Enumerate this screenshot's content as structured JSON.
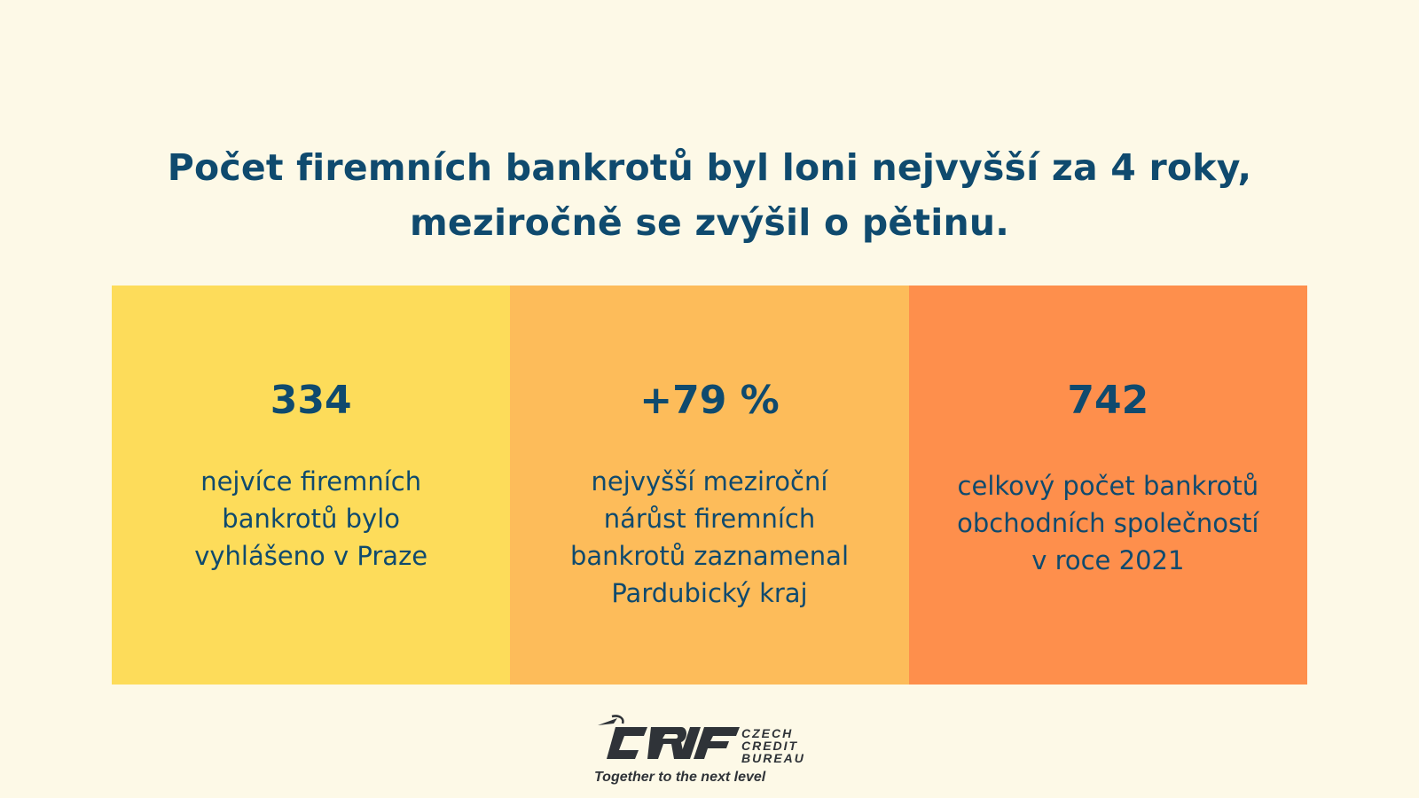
{
  "headline": {
    "line1": "Počet firemních bankrotů byl loni nejvyšší za 4 roky,",
    "line2": "meziročně se zvýšil o pětinu."
  },
  "stats": [
    {
      "value": "334",
      "lines": [
        "nejvíce firemních",
        "bankrotů bylo",
        "vyhlášeno v Praze"
      ],
      "color": "#fddc5a"
    },
    {
      "value": "+79 %",
      "lines": [
        "nejvyšší meziroční",
        "nárůst firemních",
        "bankrotů zaznamenal",
        "Pardubický kraj"
      ],
      "color": "#fdbc5a"
    },
    {
      "value": "742",
      "lines": [
        "celkový počet bankrotů",
        "obchodních společností",
        "v roce 2021"
      ],
      "color": "#fe8f4c"
    }
  ],
  "logo": {
    "name": "CRIF",
    "sub": [
      "CZECH",
      "CREDIT",
      "BUREAU"
    ],
    "tagline": "Together to the next level",
    "icon": "crif-logo-icon"
  },
  "colors": {
    "background": "#fdf9e7",
    "text": "#0f4a6e"
  }
}
